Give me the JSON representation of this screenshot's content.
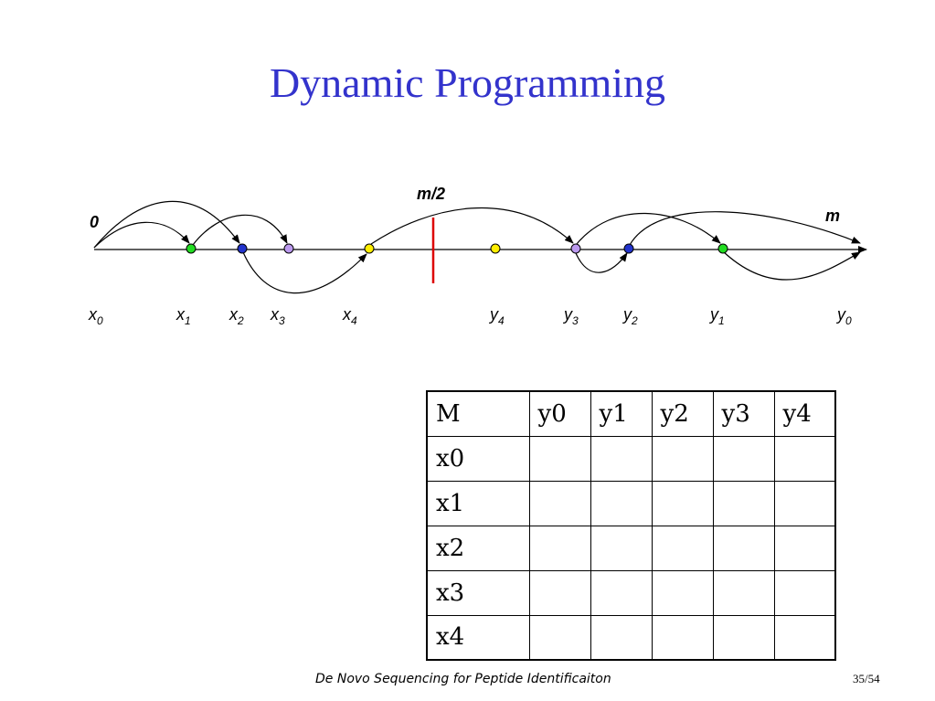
{
  "title": "Dynamic Programming",
  "diagram": {
    "label_zero": "0",
    "label_m": "m",
    "label_half": "m/2",
    "points": [
      {
        "name": "x0",
        "base": "x",
        "sub": "0"
      },
      {
        "name": "x1",
        "base": "x",
        "sub": "1",
        "color": "#22dd22"
      },
      {
        "name": "x2",
        "base": "x",
        "sub": "2",
        "color": "#2233cc"
      },
      {
        "name": "x3",
        "base": "x",
        "sub": "3",
        "color": "#bb99ee"
      },
      {
        "name": "x4",
        "base": "x",
        "sub": "4",
        "color": "#ffee00"
      },
      {
        "name": "y4",
        "base": "y",
        "sub": "4",
        "color": "#ffee00"
      },
      {
        "name": "y3",
        "base": "y",
        "sub": "3",
        "color": "#bb99ee"
      },
      {
        "name": "y2",
        "base": "y",
        "sub": "2",
        "color": "#2233cc"
      },
      {
        "name": "y1",
        "base": "y",
        "sub": "1",
        "color": "#22dd22"
      },
      {
        "name": "y0",
        "base": "y",
        "sub": "0"
      }
    ],
    "marker_color": "#dd0000"
  },
  "table": {
    "headers": [
      "M",
      "y0",
      "y1",
      "y2",
      "y3",
      "y4"
    ],
    "rows": [
      [
        "x0",
        "",
        "",
        "",
        "",
        ""
      ],
      [
        "x1",
        "",
        "",
        "",
        "",
        ""
      ],
      [
        "x2",
        "",
        "",
        "",
        "",
        ""
      ],
      [
        "x3",
        "",
        "",
        "",
        "",
        ""
      ],
      [
        "x4",
        "",
        "",
        "",
        "",
        ""
      ]
    ]
  },
  "footer": {
    "text": "De Novo Sequencing for Peptide Identificaiton",
    "page": "35/54"
  }
}
